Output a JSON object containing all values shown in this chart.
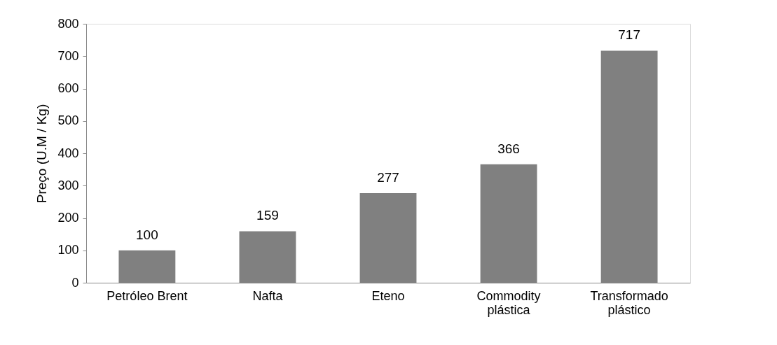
{
  "chart_data": {
    "type": "bar",
    "ylabel": "Preço  (U.M / Kg)",
    "categories": [
      "Petróleo Brent",
      "Nafta",
      "Eteno",
      "Commodity plástica",
      "Transformado plástico"
    ],
    "values": [
      100,
      159,
      277,
      366,
      717
    ],
    "color": "#808080",
    "ylim": [
      0,
      800
    ],
    "yticks": [
      0,
      100,
      200,
      300,
      400,
      500,
      600,
      700,
      800
    ],
    "data_labels": true,
    "grid": false
  }
}
